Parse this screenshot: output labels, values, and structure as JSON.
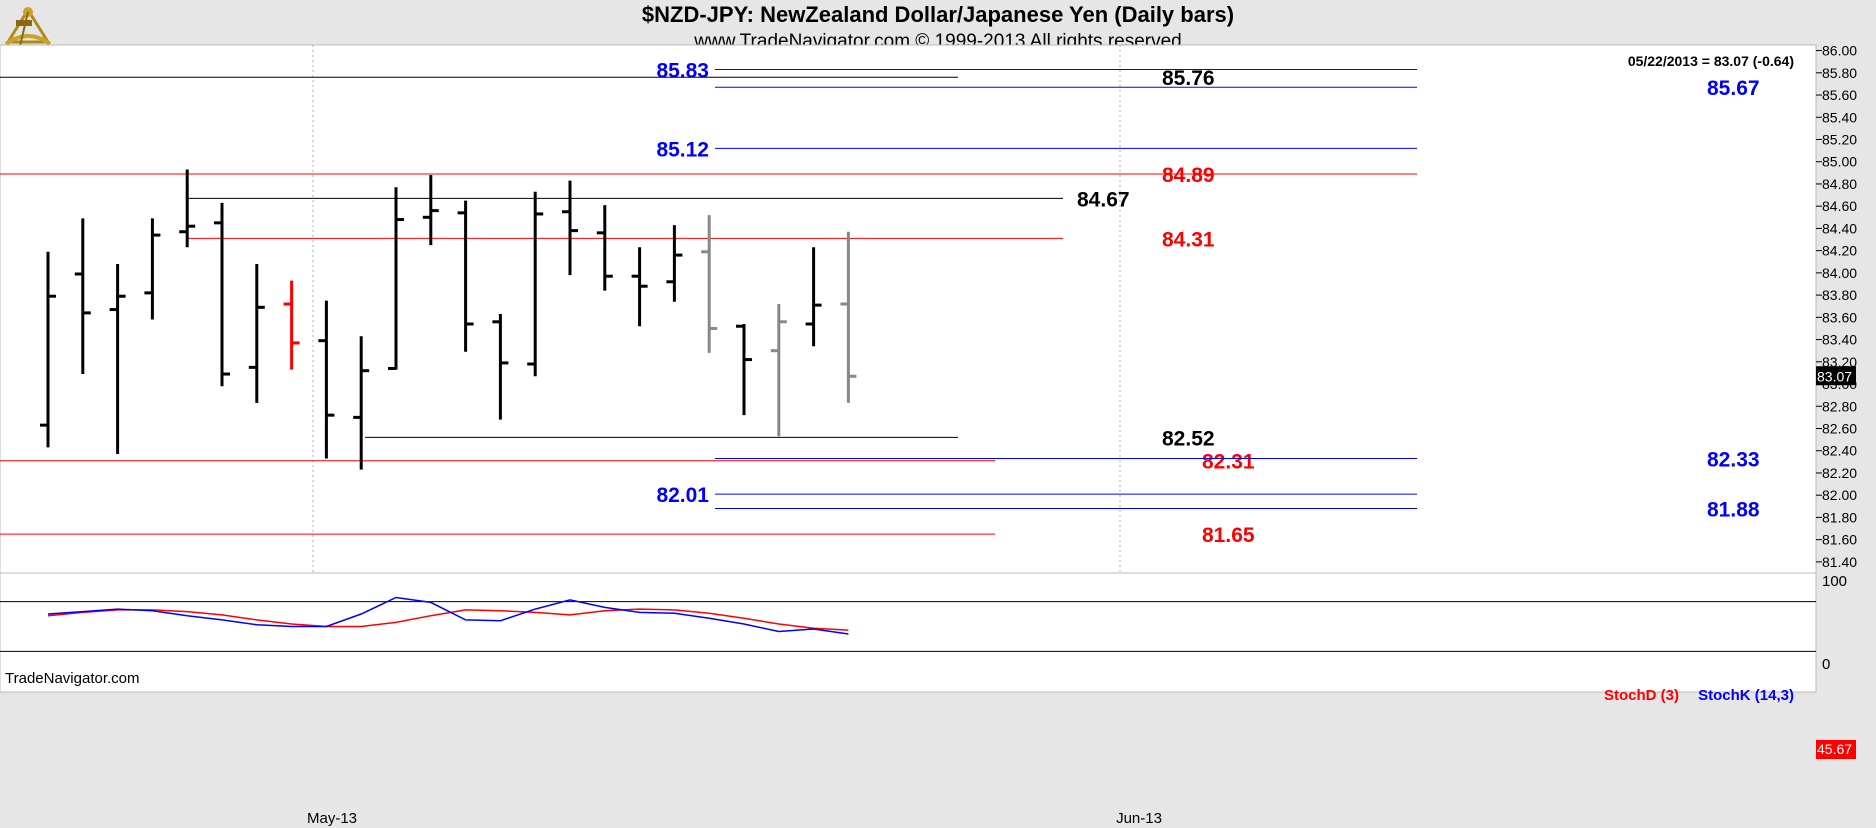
{
  "header": {
    "title": "$NZD-JPY:  NewZealand Dollar/Japanese Yen  (Daily bars)",
    "subtitle": "www.TradeNavigator.com © 1999-2013 All rights reserved",
    "quote": "05/22/2013 = 83.07 (-0.64)",
    "watermark": "TradeNavigator.com",
    "last_price": "83.07",
    "logo_icon": "sextant-icon"
  },
  "colors": {
    "background": "#ffffff",
    "frame": "#e6e6e6",
    "bar_black": "#000000",
    "bar_red": "#ff0000",
    "bar_gray": "#888888",
    "blue_level": "#0000ff",
    "red_level": "#ff0000",
    "black_level": "#000000",
    "stoch_d": "#ff0000",
    "stoch_k": "#0000ff"
  },
  "chart_data": [
    {
      "type": "ohlc",
      "ylim": [
        81.3,
        86.05
      ],
      "yticks": [
        "86.00",
        "85.80",
        "85.60",
        "85.40",
        "85.20",
        "85.00",
        "84.80",
        "84.60",
        "84.40",
        "84.20",
        "84.00",
        "83.80",
        "83.60",
        "83.40",
        "83.20",
        "83.00",
        "82.80",
        "82.60",
        "82.40",
        "82.20",
        "82.00",
        "81.80",
        "81.60",
        "81.40"
      ],
      "xlabels": [
        "May-13",
        "Jun-13"
      ],
      "grid": "vertical dotted at month starts",
      "bars": [
        {
          "o": 82.63,
          "h": 84.19,
          "l": 82.43,
          "c": 83.79,
          "color": "black"
        },
        {
          "o": 83.99,
          "h": 84.49,
          "l": 83.09,
          "c": 83.64,
          "color": "black"
        },
        {
          "o": 83.67,
          "h": 84.08,
          "l": 82.37,
          "c": 83.79,
          "color": "black"
        },
        {
          "o": 83.82,
          "h": 84.49,
          "l": 83.58,
          "c": 84.34,
          "color": "black"
        },
        {
          "o": 84.37,
          "h": 84.93,
          "l": 84.23,
          "c": 84.42,
          "color": "black"
        },
        {
          "o": 84.45,
          "h": 84.63,
          "l": 82.98,
          "c": 83.09,
          "color": "black"
        },
        {
          "o": 83.15,
          "h": 84.08,
          "l": 82.83,
          "c": 83.69,
          "color": "black"
        },
        {
          "o": 83.72,
          "h": 83.93,
          "l": 83.13,
          "c": 83.37,
          "color": "red"
        },
        {
          "o": 83.39,
          "h": 83.75,
          "l": 82.33,
          "c": 82.72,
          "color": "black"
        },
        {
          "o": 82.7,
          "h": 83.43,
          "l": 82.23,
          "c": 83.12,
          "color": "black"
        },
        {
          "o": 83.14,
          "h": 84.77,
          "l": 83.13,
          "c": 84.48,
          "color": "black"
        },
        {
          "o": 84.5,
          "h": 84.88,
          "l": 84.25,
          "c": 84.56,
          "color": "black"
        },
        {
          "o": 84.54,
          "h": 84.65,
          "l": 83.29,
          "c": 83.54,
          "color": "black"
        },
        {
          "o": 83.56,
          "h": 83.63,
          "l": 82.68,
          "c": 83.19,
          "color": "black"
        },
        {
          "o": 83.18,
          "h": 84.73,
          "l": 83.07,
          "c": 84.53,
          "color": "black"
        },
        {
          "o": 84.55,
          "h": 84.83,
          "l": 83.98,
          "c": 84.38,
          "color": "black"
        },
        {
          "o": 84.36,
          "h": 84.61,
          "l": 83.84,
          "c": 83.97,
          "color": "black"
        },
        {
          "o": 83.97,
          "h": 84.23,
          "l": 83.52,
          "c": 83.88,
          "color": "black"
        },
        {
          "o": 83.92,
          "h": 84.43,
          "l": 83.74,
          "c": 84.16,
          "color": "black"
        },
        {
          "o": 84.19,
          "h": 84.52,
          "l": 83.28,
          "c": 83.5,
          "color": "gray"
        },
        {
          "o": 83.52,
          "h": 83.54,
          "l": 82.72,
          "c": 83.22,
          "color": "black"
        },
        {
          "o": 83.3,
          "h": 83.72,
          "l": 82.53,
          "c": 83.56,
          "color": "gray"
        },
        {
          "o": 83.54,
          "h": 84.23,
          "l": 83.34,
          "c": 83.71,
          "color": "black"
        },
        {
          "o": 83.72,
          "h": 84.37,
          "l": 82.83,
          "c": 83.07,
          "color": "gray"
        }
      ],
      "levels": [
        {
          "value": 85.83,
          "label": "85.83",
          "color": "blue",
          "span": "from-week"
        },
        {
          "value": 85.76,
          "label": "85.76",
          "color": "black",
          "span": "from-month"
        },
        {
          "value": 85.67,
          "label": "85.67",
          "color": "blue",
          "span": "from-week"
        },
        {
          "value": 85.12,
          "label": "85.12",
          "color": "blue",
          "span": "from-week"
        },
        {
          "value": 84.89,
          "label": "84.89",
          "color": "red",
          "span": "full"
        },
        {
          "value": 84.67,
          "label": "84.67",
          "color": "black",
          "span": "from-high"
        },
        {
          "value": 84.31,
          "label": "84.31",
          "color": "red",
          "span": "from-high"
        },
        {
          "value": 82.52,
          "label": "82.52",
          "color": "black",
          "span": "from-low"
        },
        {
          "value": 82.31,
          "label": "82.31",
          "color": "red",
          "span": "full"
        },
        {
          "value": 82.33,
          "label": "82.33",
          "color": "blue",
          "span": "from-week"
        },
        {
          "value": 82.01,
          "label": "82.01",
          "color": "blue",
          "span": "from-week"
        },
        {
          "value": 81.88,
          "label": "81.88",
          "color": "blue",
          "span": "from-week"
        },
        {
          "value": 81.65,
          "label": "81.65",
          "color": "red",
          "span": "full"
        }
      ]
    },
    {
      "type": "line",
      "ylim": [
        0,
        100
      ],
      "yticks": [
        "100",
        "0"
      ],
      "reference_lines": [
        80,
        20
      ],
      "last_value": "45.67",
      "series": [
        {
          "name": "StochD (3)",
          "color": "red",
          "values": [
            63,
            67,
            70,
            70,
            68,
            64,
            58,
            53,
            50,
            50,
            55,
            63,
            70,
            69,
            67,
            64,
            69,
            71,
            70,
            66,
            60,
            53,
            48,
            45.67
          ]
        },
        {
          "name": "StochK (14,3)",
          "color": "blue",
          "values": [
            65,
            68,
            71,
            69,
            63,
            58,
            52,
            50,
            50,
            65,
            85,
            79,
            58,
            57,
            71,
            82,
            73,
            67,
            66,
            60,
            53,
            44,
            47,
            41
          ]
        }
      ]
    }
  ]
}
